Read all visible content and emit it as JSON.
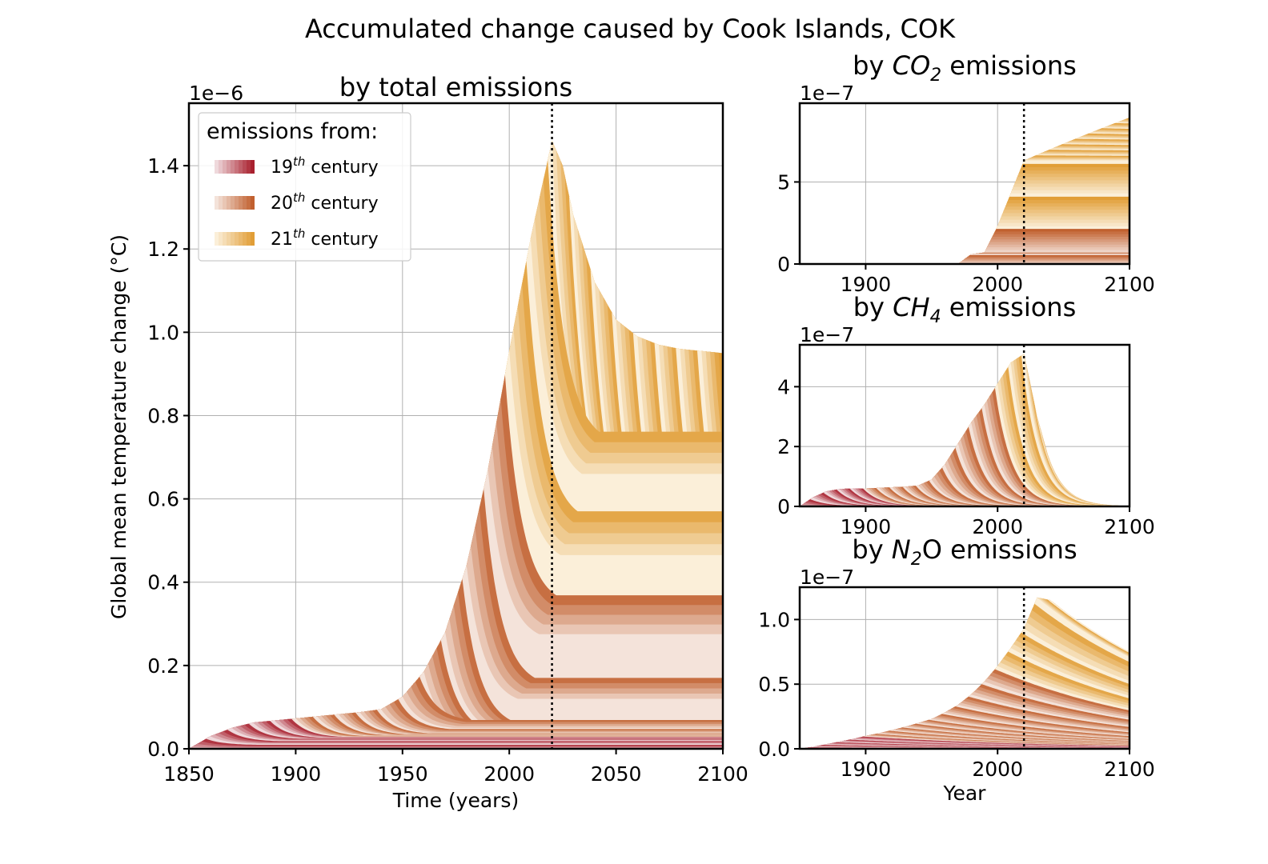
{
  "figure": {
    "title": "Accumulated change caused by Cook Islands, COK"
  },
  "legend": {
    "title": "emissions from:",
    "items": [
      {
        "prefix": "19",
        "sup": "th",
        "suffix": " century",
        "colors": [
          "#efd9dc",
          "#a8202e"
        ]
      },
      {
        "prefix": "20",
        "sup": "th",
        "suffix": " century",
        "colors": [
          "#f4e3da",
          "#c1602f"
        ]
      },
      {
        "prefix": "21",
        "sup": "th",
        "suffix": " century",
        "colors": [
          "#fbefd9",
          "#e19e37"
        ]
      }
    ]
  },
  "chart_data": [
    {
      "id": "total",
      "type": "area",
      "title": "by total emissions",
      "xlabel": "Time (years)",
      "ylabel": "Global mean temperature change (°C)",
      "offset_text": "1e−6",
      "xlim": [
        1850,
        2100
      ],
      "ylim": [
        0,
        1.55
      ],
      "xticks": [
        1850,
        1900,
        1950,
        2000,
        2050,
        2100
      ],
      "yticks": [
        0.0,
        0.2,
        0.4,
        0.6,
        0.8,
        1.0,
        1.2,
        1.4
      ],
      "ytick_labels": [
        "0.0",
        "0.2",
        "0.4",
        "0.6",
        "0.8",
        "1.0",
        "1.2",
        "1.4"
      ],
      "marker_year": 2020,
      "grid": true,
      "envelope": {
        "x": [
          1850,
          1860,
          1870,
          1880,
          1890,
          1900,
          1910,
          1920,
          1930,
          1940,
          1950,
          1960,
          1970,
          1980,
          1990,
          2000,
          2010,
          2020,
          2025,
          2030,
          2040,
          2050,
          2060,
          2070,
          2080,
          2090,
          2100
        ],
        "y": [
          0,
          0.03,
          0.05,
          0.063,
          0.068,
          0.073,
          0.078,
          0.083,
          0.088,
          0.095,
          0.125,
          0.185,
          0.28,
          0.44,
          0.67,
          0.955,
          1.225,
          1.46,
          1.4,
          1.28,
          1.12,
          1.03,
          0.99,
          0.97,
          0.96,
          0.955,
          0.95
        ]
      },
      "tails": [
        {
          "year": 2010,
          "value_2100": 0.66
        },
        {
          "year": 2000,
          "value_2100": 0.465
        },
        {
          "year": 1990,
          "value_2100": 0.275
        },
        {
          "year": 1980,
          "value_2100": 0.12
        },
        {
          "year": 1970,
          "value_2100": 0.045
        }
      ]
    },
    {
      "id": "co2",
      "type": "area",
      "title_prefix": "by ",
      "title_gas": "CO",
      "title_sub": "2",
      "title_suffix": " emissions",
      "offset_text": "1e−7",
      "xlim": [
        1850,
        2100
      ],
      "ylim": [
        0,
        9.8
      ],
      "xticks": [
        1900,
        2000,
        2100
      ],
      "yticks": [
        0,
        5
      ],
      "ytick_labels": [
        "0",
        "5"
      ],
      "marker_year": 2020,
      "grid": true,
      "steps": [
        {
          "start": 1970,
          "end": 1980,
          "level": 0.6
        },
        {
          "start": 1980,
          "end": 1990,
          "level": 0.7
        },
        {
          "start": 1990,
          "end": 2000,
          "level": 2.3
        },
        {
          "start": 2000,
          "end": 2010,
          "level": 4.3
        },
        {
          "start": 2010,
          "end": 2020,
          "level": 6.3
        },
        {
          "start": 2020,
          "end": 2100,
          "level": 9.1
        }
      ]
    },
    {
      "id": "ch4",
      "type": "area",
      "title_prefix": "by ",
      "title_gas": "CH",
      "title_sub": "4",
      "title_suffix": " emissions",
      "offset_text": "1e−7",
      "xlim": [
        1850,
        2100
      ],
      "ylim": [
        0,
        5.4
      ],
      "xticks": [
        1900,
        2000,
        2100
      ],
      "yticks": [
        0,
        2,
        4
      ],
      "ytick_labels": [
        "0",
        "2",
        "4"
      ],
      "marker_year": 2020,
      "grid": true,
      "envelope": {
        "x": [
          1850,
          1860,
          1870,
          1880,
          1890,
          1900,
          1910,
          1920,
          1930,
          1940,
          1950,
          1960,
          1970,
          1980,
          1990,
          2000,
          2010,
          2020,
          2030,
          2040,
          2050,
          2060,
          2065
        ],
        "y": [
          0,
          0.3,
          0.5,
          0.58,
          0.6,
          0.6,
          0.62,
          0.64,
          0.66,
          0.7,
          0.9,
          1.4,
          2.1,
          2.8,
          3.4,
          4.1,
          4.8,
          5.1,
          3.0,
          1.4,
          0.5,
          0.1,
          0
        ]
      }
    },
    {
      "id": "n2o",
      "type": "area",
      "title_prefix": "by ",
      "title_gas": "N",
      "title_sub": "2",
      "title_suffix": "O emissions",
      "xlabel": "Year",
      "offset_text": "1e−7",
      "xlim": [
        1850,
        2100
      ],
      "ylim": [
        0,
        1.25
      ],
      "xticks": [
        1900,
        2000,
        2100
      ],
      "yticks": [
        0.0,
        0.5,
        1.0
      ],
      "ytick_labels": [
        "0.0",
        "0.5",
        "1.0"
      ],
      "marker_year": 2020,
      "grid": true,
      "envelope": {
        "x": [
          1850,
          1860,
          1870,
          1880,
          1890,
          1900,
          1910,
          1920,
          1930,
          1940,
          1950,
          1960,
          1970,
          1980,
          1990,
          2000,
          2010,
          2020,
          2030,
          2040,
          2050,
          2060,
          2070,
          2080,
          2090,
          2100
        ],
        "y": [
          0,
          0.015,
          0.035,
          0.055,
          0.075,
          0.1,
          0.12,
          0.145,
          0.17,
          0.2,
          0.23,
          0.28,
          0.34,
          0.42,
          0.52,
          0.64,
          0.78,
          0.93,
          1.17,
          1.15,
          1.07,
          0.98,
          0.9,
          0.83,
          0.77,
          0.71
        ]
      }
    }
  ]
}
